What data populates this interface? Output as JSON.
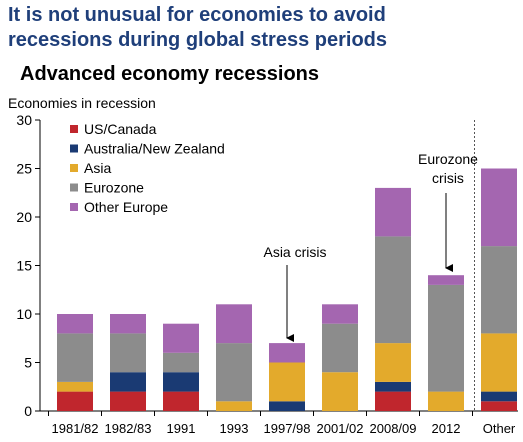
{
  "headline": {
    "line1": "It is not unusual for economies to avoid",
    "line2": "recessions during global stress periods"
  },
  "chart_data": {
    "type": "bar",
    "stacked": true,
    "title": "Advanced economy recessions",
    "ylabel": "Economies in recession",
    "xlabel": "",
    "ylim": [
      0,
      30
    ],
    "yticks": [
      0,
      5,
      10,
      15,
      20,
      25,
      30
    ],
    "grid": false,
    "legend_position": "top-left",
    "categories": [
      "1981/82",
      "1982/83",
      "1991",
      "1993",
      "1997/98",
      "2001/02",
      "2008/09",
      "2012",
      "Other"
    ],
    "series": [
      {
        "name": "US/Canada",
        "color": "#c0262d",
        "values": [
          2,
          2,
          2,
          0,
          0,
          0,
          2,
          0,
          1
        ]
      },
      {
        "name": "Australia/New Zealand",
        "color": "#1a3a73",
        "values": [
          0,
          2,
          2,
          0,
          1,
          0,
          1,
          0,
          1
        ]
      },
      {
        "name": "Asia",
        "color": "#e3aa2c",
        "values": [
          1,
          0,
          0,
          1,
          4,
          4,
          4,
          2,
          6
        ]
      },
      {
        "name": "Eurozone",
        "color": "#8c8c8c",
        "values": [
          5,
          4,
          2,
          6,
          0,
          5,
          11,
          11,
          9
        ]
      },
      {
        "name": "Other Europe",
        "color": "#a466b0",
        "values": [
          2,
          2,
          3,
          4,
          2,
          2,
          5,
          1,
          8
        ]
      }
    ],
    "annotations": [
      {
        "lines": [
          "Asia crisis"
        ],
        "category": "1997/98"
      },
      {
        "lines": [
          "Eurozone",
          "crisis"
        ],
        "category": "2012"
      }
    ],
    "separator_before": "Other"
  }
}
